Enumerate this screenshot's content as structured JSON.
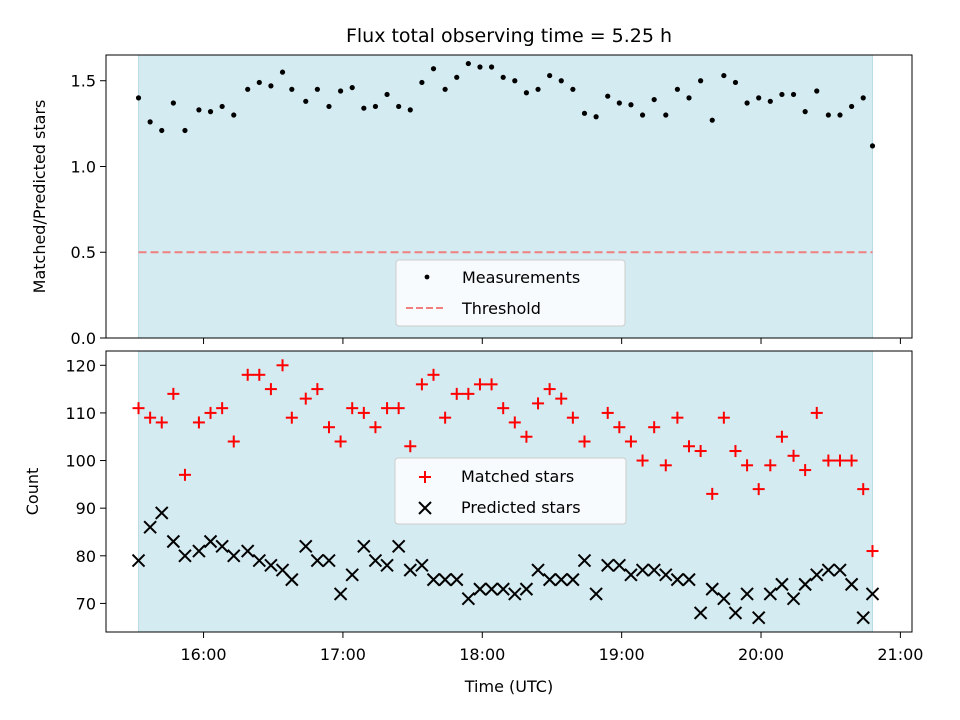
{
  "chart_data": [
    {
      "type": "scatter",
      "title": "Flux total observing time = 5.25 h",
      "xlabel": "",
      "ylabel": "Matched/Predicted stars",
      "xlim": [
        "15:18",
        "21:05"
      ],
      "ylim": [
        0.0,
        1.65
      ],
      "yticks": [
        "0.0",
        "0.5",
        "1.0",
        "1.5"
      ],
      "grid": false,
      "legend_position": "bottom-center",
      "observing_window": {
        "start": "15:32",
        "end": "20:48",
        "color": "#d4ebf1"
      },
      "threshold": {
        "name": "Threshold",
        "value": 0.5,
        "color": "#f08080",
        "style": "dashed"
      },
      "series": [
        {
          "name": "Measurements",
          "marker": "dot",
          "color": "#000000",
          "x": [
            "15:32",
            "15:37",
            "15:42",
            "15:47",
            "15:52",
            "15:58",
            "16:03",
            "16:08",
            "16:13",
            "16:19",
            "16:24",
            "16:29",
            "16:34",
            "16:38",
            "16:44",
            "16:49",
            "16:54",
            "16:59",
            "17:04",
            "17:09",
            "17:14",
            "17:19",
            "17:24",
            "17:29",
            "17:34",
            "17:39",
            "17:44",
            "17:49",
            "17:54",
            "17:59",
            "18:04",
            "18:09",
            "18:14",
            "18:19",
            "18:24",
            "18:29",
            "18:34",
            "18:39",
            "18:44",
            "18:49",
            "18:54",
            "18:59",
            "19:04",
            "19:09",
            "19:14",
            "19:19",
            "19:24",
            "19:29",
            "19:34",
            "19:39",
            "19:44",
            "19:49",
            "19:54",
            "19:59",
            "20:04",
            "20:09",
            "20:14",
            "20:19",
            "20:24",
            "20:29",
            "20:34",
            "20:39",
            "20:44",
            "20:48"
          ],
          "y": [
            1.4,
            1.26,
            1.21,
            1.37,
            1.21,
            1.33,
            1.32,
            1.35,
            1.3,
            1.45,
            1.49,
            1.47,
            1.55,
            1.45,
            1.38,
            1.45,
            1.35,
            1.44,
            1.46,
            1.34,
            1.35,
            1.42,
            1.35,
            1.33,
            1.49,
            1.57,
            1.45,
            1.52,
            1.6,
            1.58,
            1.58,
            1.52,
            1.5,
            1.43,
            1.45,
            1.53,
            1.5,
            1.45,
            1.31,
            1.29,
            1.41,
            1.37,
            1.36,
            1.3,
            1.39,
            1.3,
            1.45,
            1.4,
            1.5,
            1.27,
            1.53,
            1.49,
            1.37,
            1.4,
            1.38,
            1.42,
            1.42,
            1.32,
            1.44,
            1.3,
            1.3,
            1.35,
            1.4,
            1.12
          ]
        }
      ]
    },
    {
      "type": "scatter",
      "title": "",
      "xlabel": "Time (UTC)",
      "ylabel": "Count",
      "xlim": [
        "15:18",
        "21:05"
      ],
      "ylim": [
        64,
        123
      ],
      "xticks": [
        "16:00",
        "17:00",
        "18:00",
        "19:00",
        "20:00",
        "21:00"
      ],
      "yticks": [
        "70",
        "80",
        "90",
        "100",
        "110",
        "120"
      ],
      "grid": false,
      "legend_position": "center",
      "observing_window": {
        "start": "15:32",
        "end": "20:48",
        "color": "#d4ebf1"
      },
      "series": [
        {
          "name": "Matched stars",
          "marker": "plus",
          "color": "#ff0000",
          "x": [
            "15:32",
            "15:37",
            "15:42",
            "15:47",
            "15:52",
            "15:58",
            "16:03",
            "16:08",
            "16:13",
            "16:19",
            "16:24",
            "16:29",
            "16:34",
            "16:38",
            "16:44",
            "16:49",
            "16:54",
            "16:59",
            "17:04",
            "17:09",
            "17:14",
            "17:19",
            "17:24",
            "17:29",
            "17:34",
            "17:39",
            "17:44",
            "17:49",
            "17:54",
            "17:59",
            "18:04",
            "18:09",
            "18:14",
            "18:19",
            "18:24",
            "18:29",
            "18:34",
            "18:39",
            "18:44",
            "18:49",
            "18:54",
            "18:59",
            "19:04",
            "19:09",
            "19:14",
            "19:19",
            "19:24",
            "19:29",
            "19:34",
            "19:39",
            "19:44",
            "19:49",
            "19:54",
            "19:59",
            "20:04",
            "20:09",
            "20:14",
            "20:19",
            "20:24",
            "20:29",
            "20:34",
            "20:39",
            "20:44",
            "20:48"
          ],
          "y": [
            111,
            109,
            108,
            114,
            97,
            108,
            110,
            111,
            104,
            118,
            118,
            115,
            120,
            109,
            113,
            115,
            107,
            104,
            111,
            110,
            107,
            111,
            111,
            103,
            116,
            118,
            109,
            114,
            114,
            116,
            116,
            111,
            108,
            105,
            112,
            115,
            113,
            109,
            104,
            93,
            110,
            107,
            104,
            100,
            107,
            99,
            109,
            103,
            102,
            93,
            109,
            102,
            99,
            94,
            99,
            105,
            101,
            98,
            110,
            100,
            100,
            100,
            94,
            81
          ]
        },
        {
          "name": "Predicted stars",
          "marker": "x",
          "color": "#000000",
          "x": [
            "15:32",
            "15:37",
            "15:42",
            "15:47",
            "15:52",
            "15:58",
            "16:03",
            "16:08",
            "16:13",
            "16:19",
            "16:24",
            "16:29",
            "16:34",
            "16:38",
            "16:44",
            "16:49",
            "16:54",
            "16:59",
            "17:04",
            "17:09",
            "17:14",
            "17:19",
            "17:24",
            "17:29",
            "17:34",
            "17:39",
            "17:44",
            "17:49",
            "17:54",
            "17:59",
            "18:04",
            "18:09",
            "18:14",
            "18:19",
            "18:24",
            "18:29",
            "18:34",
            "18:39",
            "18:44",
            "18:49",
            "18:54",
            "18:59",
            "19:04",
            "19:09",
            "19:14",
            "19:19",
            "19:24",
            "19:29",
            "19:34",
            "19:39",
            "19:44",
            "19:49",
            "19:54",
            "19:59",
            "20:04",
            "20:09",
            "20:14",
            "20:19",
            "20:24",
            "20:29",
            "20:34",
            "20:39",
            "20:44",
            "20:48"
          ],
          "y": [
            79,
            86,
            89,
            83,
            80,
            81,
            83,
            82,
            80,
            81,
            79,
            78,
            77,
            75,
            82,
            79,
            79,
            72,
            76,
            82,
            79,
            78,
            82,
            77,
            78,
            75,
            75,
            75,
            71,
            73,
            73,
            73,
            72,
            73,
            77,
            75,
            75,
            75,
            79,
            72,
            78,
            78,
            76,
            77,
            77,
            76,
            75,
            75,
            68,
            73,
            71,
            68,
            72,
            67,
            72,
            74,
            71,
            74,
            76,
            77,
            77,
            74,
            67,
            72
          ]
        }
      ]
    }
  ]
}
